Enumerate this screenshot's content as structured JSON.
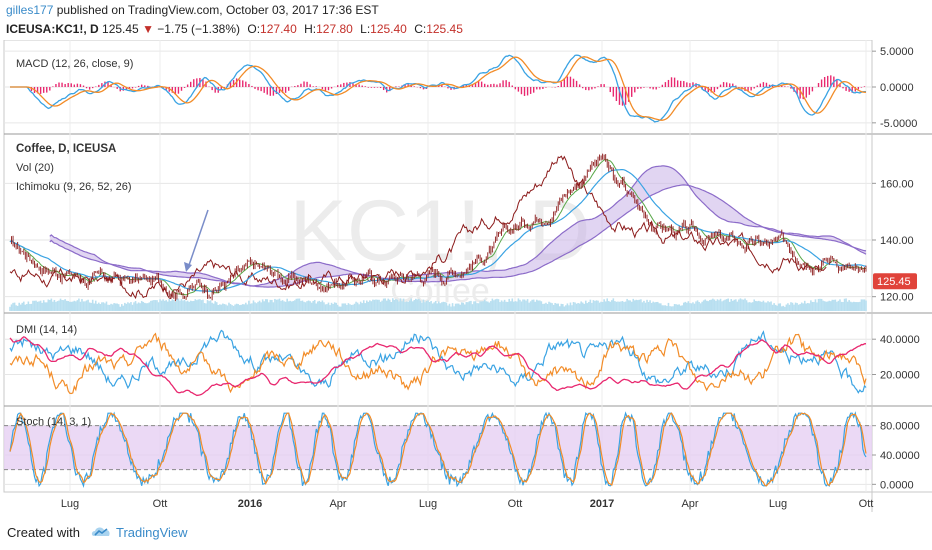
{
  "header": {
    "user": "gilles177",
    "published": "published on TradingView.com, October 03, 2017 17:36 EST",
    "symbol": "ICEUSA:KC1!, D",
    "price": "125.45",
    "change": "−1.75 (−1.38%)",
    "open_label": "O:",
    "open": "127.40",
    "high_label": "H:",
    "high": "127.80",
    "low_label": "L:",
    "low": "125.40",
    "close_label": "C:",
    "close": "125.45"
  },
  "colors": {
    "orange": "#f28c28",
    "blue": "#3aa3e3",
    "pink": "#e8286f",
    "purple": "#8c6cc9",
    "cloud": "#c9b3e8",
    "candle": "#8b1a1a",
    "stochband": "#e6cff2",
    "volume": "#b8dff0",
    "price_badge": "#e0433a"
  },
  "chart_data": [
    {
      "type": "line",
      "title": "MACD (12, 26, close, 9)",
      "yticks": [
        "5.0000",
        "0.0000",
        "-5.0000"
      ],
      "ylim": [
        -6,
        6
      ],
      "series": []
    },
    {
      "type": "line",
      "title": "Coffee, D, ICEUSA",
      "legend": [
        "Vol (20)",
        "Ichimoku (9, 26, 52, 26)"
      ],
      "watermark": "KC1!, D",
      "watermark_sub": "Coffee",
      "yticks": [
        "160.00",
        "140.00",
        "120.00"
      ],
      "ylim": [
        116,
        176
      ],
      "last_price": "125.45",
      "series": []
    },
    {
      "type": "line",
      "title": "DMI (14, 14)",
      "yticks": [
        "40.0000",
        "20.0000"
      ],
      "ylim": [
        5,
        52
      ],
      "series": []
    },
    {
      "type": "line",
      "title": "Stoch (14, 3, 1)",
      "yticks": [
        "80.0000",
        "40.0000",
        "0.0000"
      ],
      "ylim": [
        -5,
        100
      ],
      "series": []
    }
  ],
  "time_axis": [
    "Lug",
    "Ott",
    "2016",
    "Apr",
    "Lug",
    "Ott",
    "2017",
    "Apr",
    "Lug",
    "Ott"
  ],
  "footer": {
    "created": "Created with",
    "brand": "TradingView"
  }
}
